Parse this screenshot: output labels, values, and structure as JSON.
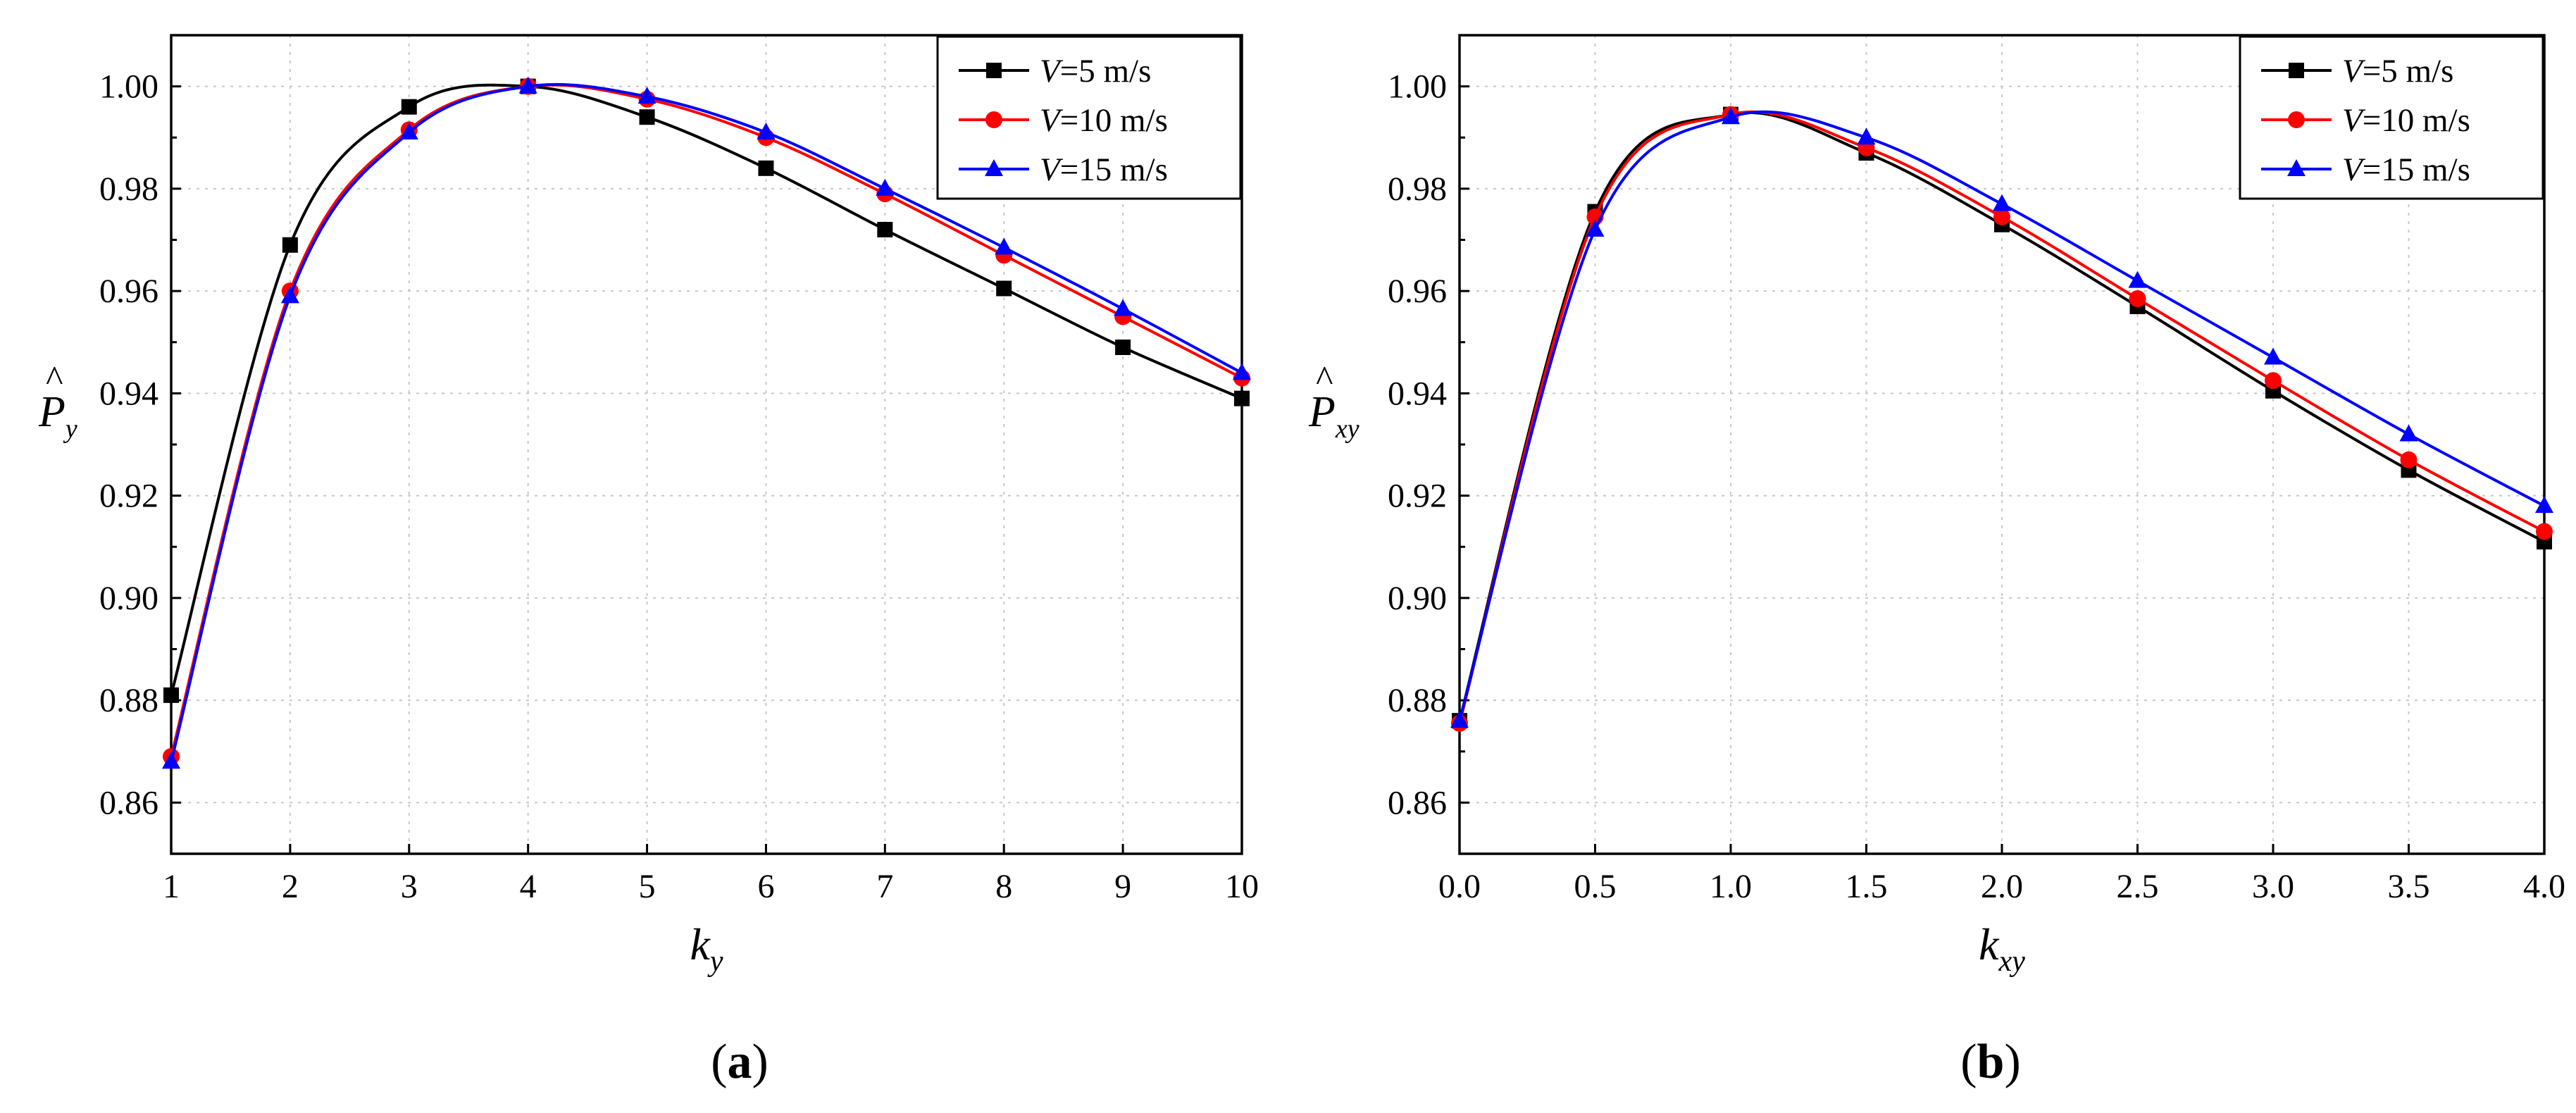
{
  "figure": {
    "panel_labels": [
      {
        "open": "(",
        "letter": "a",
        "close": ")"
      },
      {
        "open": "(",
        "letter": "b",
        "close": ")"
      }
    ]
  },
  "chart_data": [
    {
      "type": "line",
      "panel": "a",
      "xlabel": {
        "main": "k",
        "sub": "y"
      },
      "ylabel": {
        "hat": "^",
        "main": "P",
        "sub": "y"
      },
      "xlim": [
        1,
        10
      ],
      "ylim": [
        0.85,
        1.01
      ],
      "xticks": [
        1,
        2,
        3,
        4,
        5,
        6,
        7,
        8,
        9,
        10
      ],
      "xtick_labels": [
        "1",
        "2",
        "3",
        "4",
        "5",
        "6",
        "7",
        "8",
        "9",
        "10"
      ],
      "yticks": [
        0.86,
        0.88,
        0.9,
        0.92,
        0.94,
        0.96,
        0.98,
        1.0
      ],
      "ytick_labels": [
        "0.86",
        "0.88",
        "0.90",
        "0.92",
        "0.94",
        "0.96",
        "0.98",
        "1.00"
      ],
      "grid": true,
      "legend_position": "top-right",
      "series": [
        {
          "name": "V=5 m/s",
          "legend_var": "V",
          "legend_rest": "=5 m/s",
          "color": "#000000",
          "marker": "square",
          "x": [
            1,
            2,
            3,
            4,
            5,
            6,
            7,
            8,
            9,
            10
          ],
          "y": [
            0.881,
            0.969,
            0.996,
            1.0,
            0.994,
            0.984,
            0.972,
            0.9605,
            0.949,
            0.939
          ]
        },
        {
          "name": "V=10 m/s",
          "legend_var": "V",
          "legend_rest": "=10 m/s",
          "color": "#ff0000",
          "marker": "circle",
          "x": [
            1,
            2,
            3,
            4,
            5,
            6,
            7,
            8,
            9,
            10
          ],
          "y": [
            0.869,
            0.96,
            0.9915,
            1.0,
            0.9975,
            0.99,
            0.979,
            0.967,
            0.955,
            0.943
          ]
        },
        {
          "name": "V=15 m/s",
          "legend_var": "V",
          "legend_rest": "=15 m/s",
          "color": "#0000ff",
          "marker": "triangle",
          "x": [
            1,
            2,
            3,
            4,
            5,
            6,
            7,
            8,
            9,
            10
          ],
          "y": [
            0.868,
            0.959,
            0.991,
            1.0,
            0.998,
            0.991,
            0.98,
            0.9685,
            0.9565,
            0.944
          ]
        }
      ]
    },
    {
      "type": "line",
      "panel": "b",
      "xlabel": {
        "main": "k",
        "sub": "xy"
      },
      "ylabel": {
        "hat": "^",
        "main": "P",
        "sub": "xy"
      },
      "xlim": [
        0,
        4
      ],
      "ylim": [
        0.85,
        1.01
      ],
      "xticks": [
        0,
        0.5,
        1.0,
        1.5,
        2.0,
        2.5,
        3.0,
        3.5,
        4.0
      ],
      "xtick_labels": [
        "0.0",
        "0.5",
        "1.0",
        "1.5",
        "2.0",
        "2.5",
        "3.0",
        "3.5",
        "4.0"
      ],
      "yticks": [
        0.86,
        0.88,
        0.9,
        0.92,
        0.94,
        0.96,
        0.98,
        1.0
      ],
      "ytick_labels": [
        "0.86",
        "0.88",
        "0.90",
        "0.92",
        "0.94",
        "0.96",
        "0.98",
        "1.00"
      ],
      "grid": true,
      "legend_position": "top-right",
      "series": [
        {
          "name": "V=5 m/s",
          "legend_var": "V",
          "legend_rest": "=5 m/s",
          "color": "#000000",
          "marker": "square",
          "x": [
            0,
            0.5,
            1.0,
            1.5,
            2.0,
            2.5,
            3.0,
            3.5,
            4.0
          ],
          "y": [
            0.876,
            0.9755,
            0.9945,
            0.987,
            0.973,
            0.957,
            0.9405,
            0.925,
            0.911
          ]
        },
        {
          "name": "V=10 m/s",
          "legend_var": "V",
          "legend_rest": "=10 m/s",
          "color": "#ff0000",
          "marker": "circle",
          "x": [
            0,
            0.5,
            1.0,
            1.5,
            2.0,
            2.5,
            3.0,
            3.5,
            4.0
          ],
          "y": [
            0.8755,
            0.9745,
            0.9945,
            0.988,
            0.9745,
            0.9585,
            0.9425,
            0.927,
            0.913
          ]
        },
        {
          "name": "V=15 m/s",
          "legend_var": "V",
          "legend_rest": "=15 m/s",
          "color": "#0000ff",
          "marker": "triangle",
          "x": [
            0,
            0.5,
            1.0,
            1.5,
            2.0,
            2.5,
            3.0,
            3.5,
            4.0
          ],
          "y": [
            0.876,
            0.972,
            0.994,
            0.99,
            0.977,
            0.962,
            0.947,
            0.932,
            0.918
          ]
        }
      ]
    }
  ]
}
